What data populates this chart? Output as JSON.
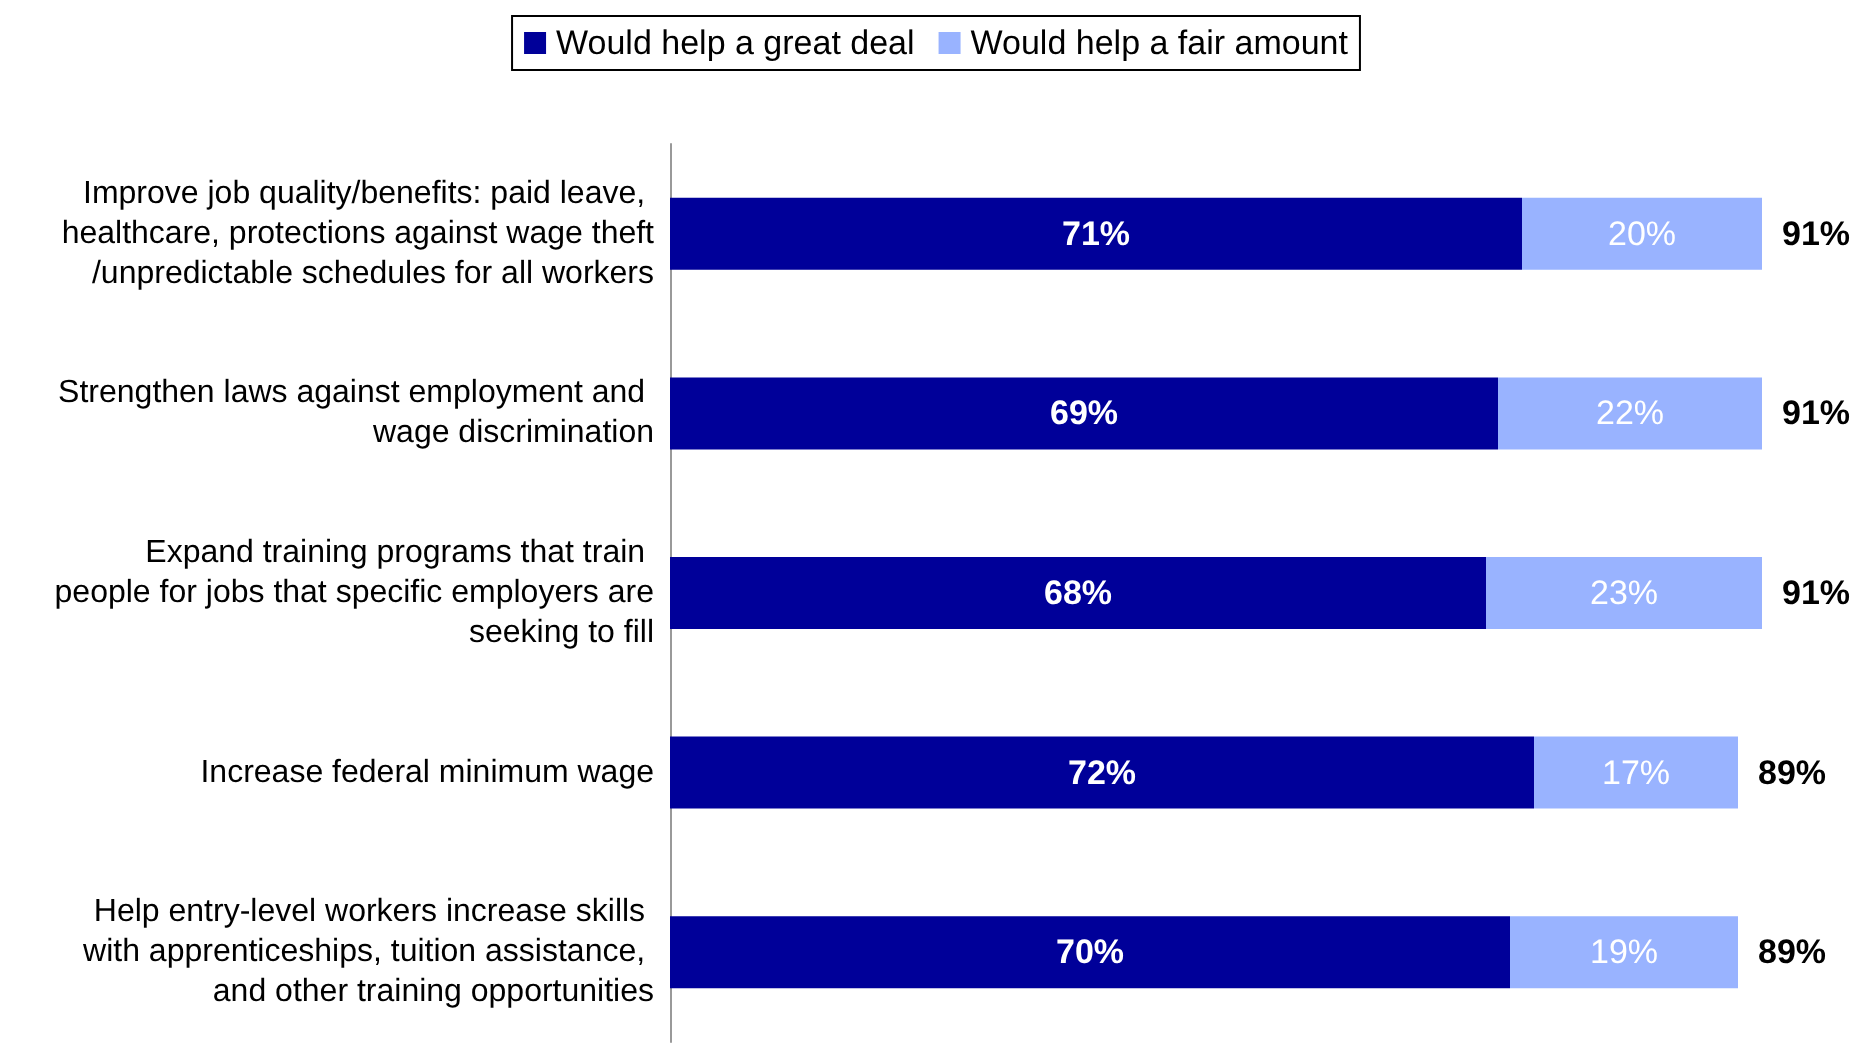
{
  "chart_data": {
    "type": "bar",
    "orientation": "horizontal",
    "stacked": true,
    "legend": "top",
    "categories": [
      "Improve job quality/benefits: paid leave, healthcare, protections against wage theft/unpredictable schedules for all workers",
      "Strengthen laws against employment and wage discrimination",
      "Expand training programs that train people for jobs that specific employers are seeking to fill",
      "Increase federal minimum wage",
      "Help entry-level workers increase skills with apprenticeships, tuition assistance, and other training opportunities"
    ],
    "series": [
      {
        "name": "Would help a great deal",
        "color": "#000099",
        "values": [
          71,
          69,
          68,
          72,
          70
        ],
        "value_labels": [
          "71%",
          "69%",
          "68%",
          "72%",
          "70%"
        ]
      },
      {
        "name": "Would help a fair amount",
        "color": "#99b3ff",
        "values": [
          20,
          22,
          23,
          17,
          19
        ],
        "value_labels": [
          "20%",
          "22%",
          "23%",
          "17%",
          "19%"
        ]
      }
    ],
    "totals": [
      "91%",
      "91%",
      "91%",
      "89%",
      "89%"
    ]
  }
}
